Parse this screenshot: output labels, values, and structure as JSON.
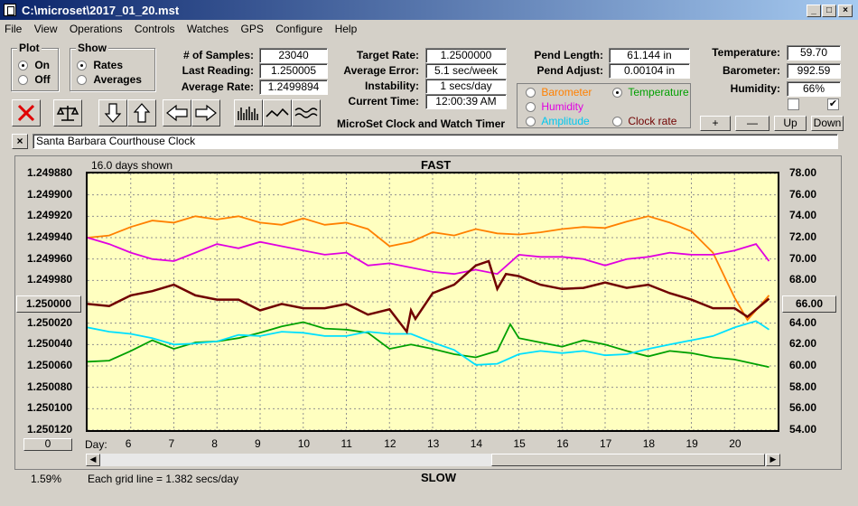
{
  "window": {
    "title": "C:\\microset\\2017_01_20.mst"
  },
  "menu": [
    "File",
    "View",
    "Operations",
    "Controls",
    "Watches",
    "GPS",
    "Configure",
    "Help"
  ],
  "plot_group": {
    "title": "Plot",
    "on": "On",
    "off": "Off",
    "selected": "On"
  },
  "show_group": {
    "title": "Show",
    "rates": "Rates",
    "averages": "Averages",
    "selected": "Rates"
  },
  "stats": {
    "samples_label": "# of Samples:",
    "samples": "23040",
    "last_label": "Last Reading:",
    "last": "1.250005",
    "avg_label": "Average Rate:",
    "avg": "1.2499894",
    "target_label": "Target Rate:",
    "target": "1.2500000",
    "err_label": "Average Error:",
    "err": "5.1 sec/week",
    "inst_label": "Instability:",
    "inst": "1 secs/day",
    "time_label": "Current Time:",
    "time": "12:00:39 AM",
    "pend_len_label": "Pend Length:",
    "pend_len": "61.144 in",
    "pend_adj_label": "Pend Adjust:",
    "pend_adj": "0.00104 in",
    "temp_label": "Temperature:",
    "temp": "59.70",
    "baro_label": "Barometer:",
    "baro": "992.59",
    "hum_label": "Humidity:",
    "hum": "66%"
  },
  "app_caption": "MicroSet Clock and Watch Timer",
  "series_select": {
    "barometer": "Barometer",
    "temperature": "Temperature",
    "humidity": "Humidity",
    "amplitude": "Amplitude",
    "clock_rate": "Clock rate",
    "selected": "Temperature"
  },
  "adjust_buttons": {
    "plus": "+",
    "minus": "—",
    "up": "Up",
    "down": "Down"
  },
  "clock_name": "Santa Barbara Courthouse Clock",
  "close_x": "×",
  "chart_top": {
    "days_shown": "16.0 days shown",
    "fast": "FAST",
    "slow": "SLOW",
    "grid_note": "Each grid line = 1.382 secs/day",
    "pct": "1.59%",
    "day_label": "Day:",
    "left_btn": "1.250000",
    "right_btn": "66.00",
    "zero_btn": "0"
  },
  "colors": {
    "barometer": "#ff8000",
    "temperature": "#00a000",
    "humidity": "#e000e0",
    "amplitude": "#00e0ff",
    "clock_rate": "#700000",
    "plot_bg": "#ffffc0"
  },
  "chart_data": {
    "type": "line",
    "xlabel": "Day:",
    "x_ticks": [
      "6",
      "7",
      "8",
      "9",
      "10",
      "11",
      "12",
      "13",
      "14",
      "15",
      "16",
      "17",
      "18",
      "19",
      "20"
    ],
    "y_left_ticks": [
      "1.249880",
      "1.249900",
      "1.249920",
      "1.249940",
      "1.249960",
      "1.249980",
      "1.250000",
      "1.250020",
      "1.250040",
      "1.250060",
      "1.250080",
      "1.250100",
      "1.250120"
    ],
    "y_right_ticks": [
      "78.00",
      "76.00",
      "74.00",
      "72.00",
      "70.00",
      "68.00",
      "66.00",
      "64.00",
      "62.00",
      "60.00",
      "58.00",
      "56.00",
      "54.00"
    ],
    "x_range": [
      5,
      21
    ],
    "y_right_range": [
      54,
      78
    ],
    "series": [
      {
        "key": "barometer",
        "color": "#ff8000",
        "x": [
          5,
          5.5,
          6,
          6.5,
          7,
          7.5,
          8,
          8.5,
          9,
          9.5,
          10,
          10.5,
          11,
          11.5,
          12,
          12.5,
          13,
          13.5,
          14,
          14.5,
          15,
          15.5,
          16,
          16.5,
          17,
          17.5,
          18,
          18.5,
          19,
          19.5,
          20,
          20.3,
          20.8
        ],
        "y": [
          72,
          72.2,
          73,
          73.6,
          73.4,
          74,
          73.7,
          74,
          73.4,
          73.2,
          73.8,
          73.2,
          73.4,
          72.8,
          71.2,
          71.6,
          72.5,
          72.2,
          72.8,
          72.4,
          72.3,
          72.5,
          72.8,
          73,
          72.9,
          73.5,
          74,
          73.4,
          72.6,
          70.6,
          66.4,
          64.3,
          66.6
        ]
      },
      {
        "key": "temperature",
        "color": "#00a000",
        "x": [
          5,
          5.5,
          6,
          6.5,
          7,
          7.5,
          8,
          8.5,
          9,
          9.5,
          10,
          10.5,
          11,
          11.5,
          12,
          12.5,
          13,
          13.5,
          14,
          14.5,
          14.8,
          15,
          15.5,
          16,
          16.5,
          17,
          17.5,
          18,
          18.5,
          19,
          19.5,
          20,
          20.8
        ],
        "y": [
          60.4,
          60.5,
          61.4,
          62.4,
          61.6,
          62.2,
          62.3,
          62.6,
          63.1,
          63.7,
          64.1,
          63.5,
          63.4,
          63.1,
          61.6,
          62,
          61.6,
          61.1,
          60.8,
          61.4,
          63.9,
          62.6,
          62.2,
          61.8,
          62.4,
          62,
          61.4,
          60.9,
          61.4,
          61.2,
          60.8,
          60.6,
          59.9
        ]
      },
      {
        "key": "humidity",
        "color": "#e000e0",
        "x": [
          5,
          5.5,
          6,
          6.5,
          7,
          7.5,
          8,
          8.5,
          9,
          9.5,
          10,
          10.5,
          11,
          11.5,
          12,
          12.5,
          13,
          13.5,
          14,
          14.5,
          15,
          15.5,
          16,
          16.5,
          17,
          17.5,
          18,
          18.5,
          19,
          19.5,
          20,
          20.5,
          20.8
        ],
        "y": [
          72,
          71.4,
          70.6,
          70,
          69.8,
          70.6,
          71.4,
          71,
          71.6,
          71.2,
          70.8,
          70.4,
          70.6,
          69.4,
          69.6,
          69.2,
          68.8,
          68.6,
          69,
          68.6,
          70.4,
          70.2,
          70.2,
          70,
          69.4,
          70,
          70.2,
          70.6,
          70.4,
          70.4,
          70.8,
          71.4,
          69.8
        ]
      },
      {
        "key": "amplitude",
        "color": "#00e0ff",
        "x": [
          5,
          5.5,
          6,
          6.5,
          7,
          7.5,
          8,
          8.5,
          9,
          9.5,
          10,
          10.5,
          11,
          11.5,
          12,
          12.5,
          13,
          13.5,
          14,
          14.5,
          15,
          15.5,
          16,
          16.5,
          17,
          17.5,
          18,
          18.5,
          19,
          19.5,
          20,
          20.5,
          20.8
        ],
        "y": [
          63.6,
          63.2,
          63,
          62.6,
          62,
          62.1,
          62.3,
          62.9,
          62.8,
          63.2,
          63.1,
          62.8,
          62.8,
          63.2,
          63,
          63,
          62.2,
          61.5,
          60.1,
          60.2,
          61.1,
          61.4,
          61.2,
          61.4,
          61,
          61.1,
          61.6,
          62,
          62.4,
          62.8,
          63.6,
          64.2,
          63.4
        ]
      },
      {
        "key": "clock_rate",
        "color": "#700000",
        "x": [
          5,
          5.5,
          6,
          6.5,
          7,
          7.5,
          8,
          8.5,
          9,
          9.5,
          10,
          10.5,
          11,
          11.5,
          12,
          12.4,
          12.5,
          12.6,
          13,
          13.5,
          14,
          14.3,
          14.5,
          14.7,
          15,
          15.5,
          16,
          16.5,
          17,
          17.5,
          18,
          18.5,
          19,
          19.5,
          20,
          20.3,
          20.8
        ],
        "y": [
          65.8,
          65.6,
          66.6,
          67,
          67.6,
          66.6,
          66.2,
          66.2,
          65.2,
          65.8,
          65.4,
          65.4,
          65.8,
          64.8,
          65.3,
          63.2,
          65.2,
          64.4,
          66.8,
          67.6,
          69.4,
          69.8,
          67.2,
          68.6,
          68.4,
          67.6,
          67.2,
          67.3,
          67.8,
          67.3,
          67.6,
          66.8,
          66.2,
          65.4,
          65.4,
          64.6,
          66.3
        ]
      }
    ]
  }
}
